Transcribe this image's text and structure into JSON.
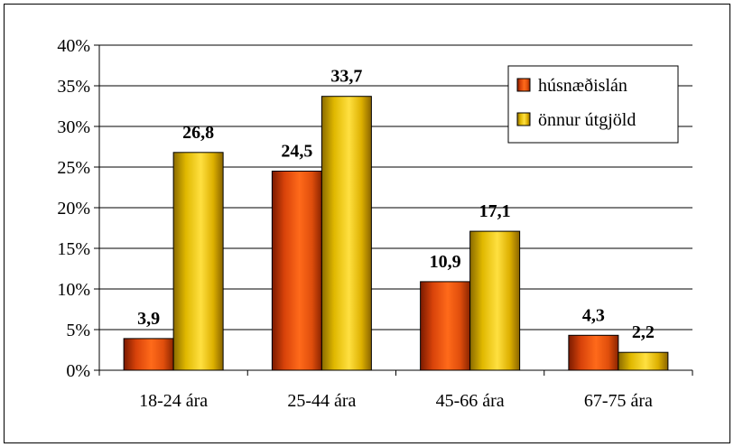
{
  "chart_data": {
    "type": "bar",
    "title": "",
    "xlabel": "",
    "ylabel": "",
    "categories": [
      "18-24 ára",
      "25-44 ára",
      "45-66 ára",
      "67-75 ára"
    ],
    "series": [
      {
        "name": "húsnæðislán",
        "values": [
          3.9,
          24.5,
          10.9,
          4.3
        ],
        "labels": [
          "3,9",
          "24,5",
          "10,9",
          "4,3"
        ],
        "color": "#F05A14"
      },
      {
        "name": "önnur útgjöld",
        "values": [
          26.8,
          33.7,
          17.1,
          2.2
        ],
        "labels": [
          "26,8",
          "33,7",
          "17,1",
          "2,2"
        ],
        "color": "#E8C000"
      }
    ],
    "ylim": [
      0,
      40
    ],
    "yticks": [
      0,
      5,
      10,
      15,
      20,
      25,
      30,
      35,
      40
    ],
    "ytick_labels": [
      "0%",
      "5%",
      "10%",
      "15%",
      "20%",
      "25%",
      "30%",
      "35%",
      "40%"
    ],
    "grid": true,
    "legend_position": "top-right"
  }
}
